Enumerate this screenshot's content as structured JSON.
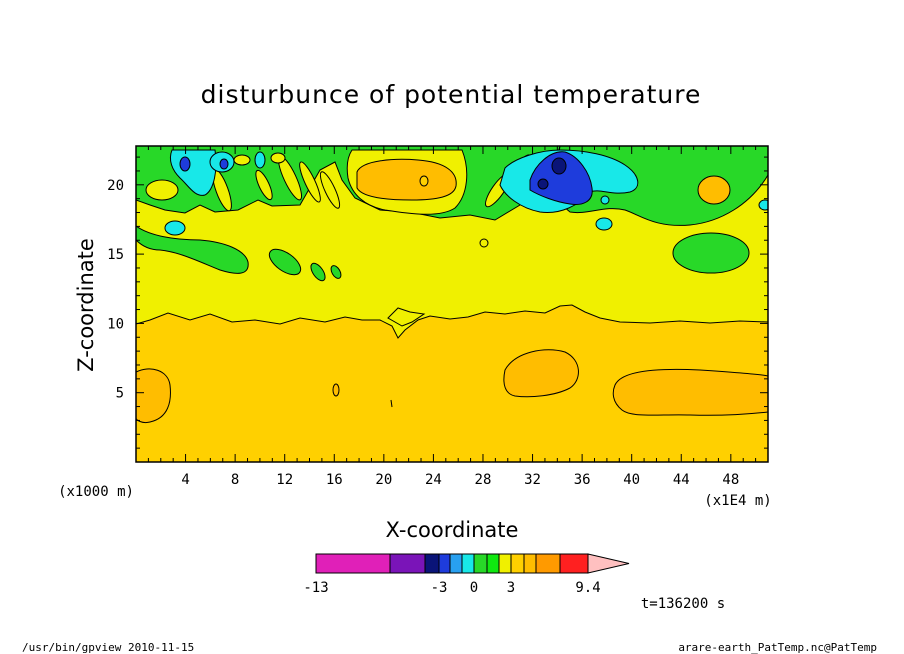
{
  "chart_data": {
    "type": "contour",
    "title": "disturbunce of potential temperature",
    "xlabel": "X-coordinate",
    "ylabel": "Z-coordinate",
    "x_unit": "(x1E4 m)",
    "y_unit": "(x1000 m)",
    "xlim": [
      0,
      51
    ],
    "ylim": [
      0,
      22.8
    ],
    "xticks": [
      4,
      8,
      12,
      16,
      20,
      24,
      28,
      32,
      36,
      40,
      44,
      48
    ],
    "yticks": [
      5,
      10,
      15,
      20
    ],
    "grid": false,
    "colorbar": {
      "labels": [
        "-13",
        "-3",
        "0",
        "3",
        "9.4"
      ],
      "colors": [
        "#e020b8",
        "#7a14b8",
        "#0a1478",
        "#1e3cdc",
        "#28a0f0",
        "#18e8e8",
        "#28d828",
        "#10e810",
        "#f0f000",
        "#ffd000",
        "#ffbd00",
        "#ff9a00",
        "#ff2020",
        "#ff7878",
        "#ffc0c0"
      ]
    },
    "bands": {
      "upper_layer": "yellow 0 to 0.5 above z = 10.5; green and cyan/blue wave patterns near the top between z = 15 and 22.8",
      "lower_layer": "gold band below z = 10.5",
      "warm_cells": [
        {
          "x": 2,
          "z": 5
        },
        {
          "x": 33,
          "z": 6
        },
        {
          "x": 44,
          "z": 5
        },
        {
          "x": 22,
          "z": 20
        }
      ],
      "cool_cells": [
        {
          "x": 34,
          "z": 21
        },
        {
          "x": 5,
          "z": 21
        },
        {
          "x": 47,
          "z": 15
        }
      ]
    },
    "annotations": [
      "t=136200 s"
    ]
  },
  "footer": {
    "left": "/usr/bin/gpview   2010-11-15",
    "right": "arare-earth_PatTemp.nc@PatTemp"
  }
}
